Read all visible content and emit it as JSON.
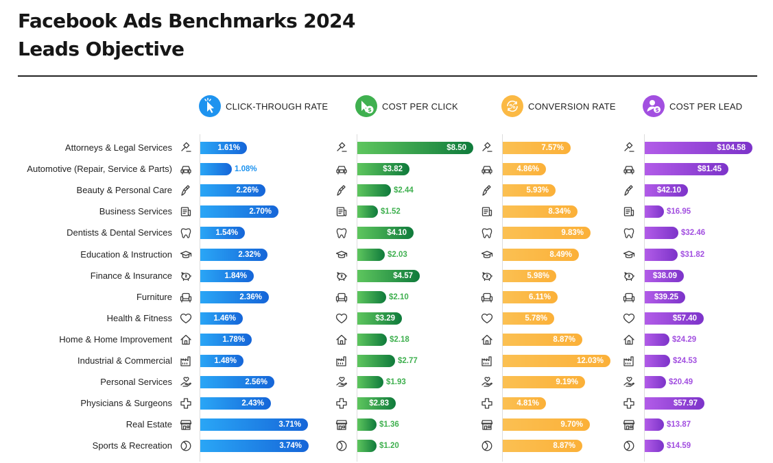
{
  "title_line1": "Facebook Ads Benchmarks 2024",
  "title_line2": "Leads Objective",
  "chart_data": {
    "type": "bar",
    "orientation": "horizontal",
    "categories": [
      "Attorneys & Legal Services",
      "Automotive (Repair, Service & Parts)",
      "Beauty & Personal Care",
      "Business Services",
      "Dentists & Dental Services",
      "Education & Instruction",
      "Finance & Insurance",
      "Furniture",
      "Health & Fitness",
      "Home & Home Improvement",
      "Industrial & Commercial",
      "Personal Services",
      "Physicians & Surgeons",
      "Real Estate",
      "Sports & Recreation"
    ],
    "category_icons": [
      "gavel-icon",
      "car-icon",
      "brush-icon",
      "document-icon",
      "tooth-icon",
      "graduation-cap-icon",
      "piggy-bank-icon",
      "sofa-icon",
      "heart-icon",
      "house-icon",
      "factory-icon",
      "hand-heart-icon",
      "medical-cross-icon",
      "storefront-icon",
      "ball-icon"
    ],
    "series": [
      {
        "name": "CLICK-THROUGH RATE",
        "icon": "cursor-click-icon",
        "color": "#1e93ef",
        "values": [
          1.61,
          1.08,
          2.26,
          2.7,
          1.54,
          2.32,
          1.84,
          2.36,
          1.46,
          1.78,
          1.48,
          2.56,
          2.43,
          3.71,
          3.74
        ],
        "labels": [
          "1.61%",
          "1.08%",
          "2.26%",
          "2.70%",
          "1.54%",
          "2.32%",
          "1.84%",
          "2.36%",
          "1.46%",
          "1.78%",
          "1.48%",
          "2.56%",
          "2.43%",
          "3.71%",
          "3.74%"
        ]
      },
      {
        "name": "COST PER CLICK",
        "icon": "cursor-dollar-icon",
        "color": "#3fb04f",
        "values": [
          8.5,
          3.82,
          2.44,
          1.52,
          4.1,
          2.03,
          4.57,
          2.1,
          3.29,
          2.18,
          2.77,
          1.93,
          2.83,
          1.36,
          1.2
        ],
        "labels": [
          "$8.50",
          "$3.82",
          "$2.44",
          "$1.52",
          "$4.10",
          "$2.03",
          "$4.57",
          "$2.10",
          "$3.29",
          "$2.18",
          "$2.77",
          "$1.93",
          "$2.83",
          "$1.36",
          "$1.20"
        ]
      },
      {
        "name": "CONVERSION RATE",
        "icon": "percent-cycle-icon",
        "color": "#fbb944",
        "values": [
          7.57,
          4.86,
          5.93,
          8.34,
          9.83,
          8.49,
          5.98,
          6.11,
          5.78,
          8.87,
          12.03,
          9.19,
          4.81,
          9.7,
          8.87
        ],
        "labels": [
          "7.57%",
          "4.86%",
          "5.93%",
          "8.34%",
          "9.83%",
          "8.49%",
          "5.98%",
          "6.11%",
          "5.78%",
          "8.87%",
          "12.03%",
          "9.19%",
          "4.81%",
          "9.70%",
          "8.87%"
        ]
      },
      {
        "name": "COST PER LEAD",
        "icon": "person-dollar-icon",
        "color": "#a24fe0",
        "values": [
          104.58,
          81.45,
          42.1,
          16.95,
          32.46,
          31.82,
          38.09,
          39.25,
          57.4,
          24.29,
          24.53,
          20.49,
          57.97,
          13.87,
          14.59
        ],
        "labels": [
          "$104.58",
          "$81.45",
          "$42.10",
          "$16.95",
          "$32.46",
          "$31.82",
          "$38.09",
          "$39.25",
          "$57.40",
          "$24.29",
          "$24.53",
          "$20.49",
          "$57.97",
          "$13.87",
          "$14.59"
        ]
      }
    ]
  }
}
